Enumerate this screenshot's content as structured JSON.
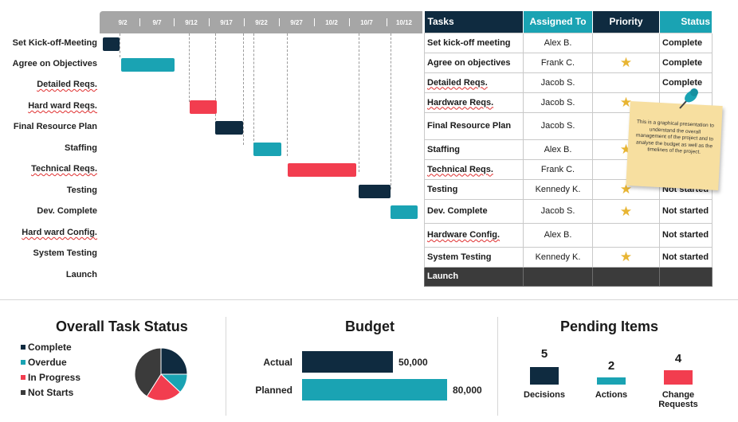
{
  "gantt": {
    "dates": [
      "9/2",
      "9/7",
      "9/12",
      "9/17",
      "9/22",
      "9/27",
      "10/2",
      "10/7",
      "10/12"
    ],
    "tasks": [
      {
        "label": "Set Kick-off-Meeting",
        "squiggle": false,
        "color": "#0f2b40"
      },
      {
        "label": "Agree on Objectives",
        "squiggle": false,
        "color": "#1aa3b3"
      },
      {
        "label": "Detailed Reqs.",
        "squiggle": true,
        "color": ""
      },
      {
        "label": "Hard ward Reqs.",
        "squiggle": true,
        "color": "#f23d4f"
      },
      {
        "label": "Final Resource Plan",
        "squiggle": false,
        "color": "#0f2b40"
      },
      {
        "label": "Staffing",
        "squiggle": false,
        "color": "#1aa3b3"
      },
      {
        "label": "Technical Reqs.",
        "squiggle": true,
        "color": "#f23d4f"
      },
      {
        "label": "Testing",
        "squiggle": false,
        "color": "#0f2b40"
      },
      {
        "label": "Dev. Complete",
        "squiggle": false,
        "color": "#1aa3b3"
      },
      {
        "label": "Hard ward Config.",
        "squiggle": true,
        "color": ""
      },
      {
        "label": "System Testing",
        "squiggle": false,
        "color": ""
      },
      {
        "label": "Launch",
        "squiggle": false,
        "color": ""
      }
    ]
  },
  "table": {
    "headers": {
      "tasks": "Tasks",
      "assigned": "Assigned To",
      "priority": "Priority",
      "status": "Status"
    },
    "header_colors": {
      "tasks": "#0f2b40",
      "assigned": "#1aa3b3",
      "priority": "#0f2b40",
      "status": "#1aa3b3"
    },
    "rows": [
      {
        "task": "Set kick-off meeting",
        "assigned": "Alex B.",
        "priority": false,
        "status": "Complete",
        "squiggle": false
      },
      {
        "task": "Agree on objectives",
        "assigned": "Frank C.",
        "priority": true,
        "status": "Complete",
        "squiggle": false
      },
      {
        "task": "Detailed Reqs.",
        "assigned": "Jacob S.",
        "priority": false,
        "status": "Complete",
        "squiggle": true
      },
      {
        "task": "Hardware Reqs.",
        "assigned": "Jacob S.",
        "priority": true,
        "status": "",
        "squiggle": true
      },
      {
        "task": "Final Resource Plan",
        "assigned": "Jacob S.",
        "priority": false,
        "status": "",
        "squiggle": false
      },
      {
        "task": "Staffing",
        "assigned": "Alex B.",
        "priority": true,
        "status": "",
        "squiggle": false
      },
      {
        "task": "Technical Reqs.",
        "assigned": "Frank C.",
        "priority": false,
        "status": "",
        "squiggle": true
      },
      {
        "task": "Testing",
        "assigned": "Kennedy K.",
        "priority": true,
        "status": "Not started",
        "squiggle": false
      },
      {
        "task": "Dev. Complete",
        "assigned": "Jacob S.",
        "priority": true,
        "status": "Not started",
        "squiggle": false
      },
      {
        "task": "Hardware Config.",
        "assigned": "Alex B.",
        "priority": false,
        "status": "Not started",
        "squiggle": true
      },
      {
        "task": "System Testing",
        "assigned": "Kennedy K.",
        "priority": true,
        "status": "Not started",
        "squiggle": false
      }
    ],
    "launch_label": "Launch",
    "star_icon": "star-icon",
    "star_color": "#e8b533"
  },
  "note": {
    "text": "This is a graphical presentation to understand the overall management of the project and to analyse the budget as well as the timelines of the project.",
    "pin_icon": "pushpin-icon",
    "pin_color": "#1aa3b3"
  },
  "task_status": {
    "title": "Overall Task Status",
    "legend": [
      {
        "label": "Complete",
        "color": "#0f2b40"
      },
      {
        "label": "Overdue",
        "color": "#1aa3b3"
      },
      {
        "label": "In Progress",
        "color": "#f23d4f"
      },
      {
        "label": "Not Starts",
        "color": "#3b3b3b"
      }
    ],
    "pie_colors": [
      "#0f2b40",
      "#1aa3b3",
      "#f23d4f",
      "#3b3b3b"
    ]
  },
  "budget": {
    "title": "Budget",
    "items": [
      {
        "label": "Actual",
        "value": "50,000",
        "amount": 50000,
        "color": "#0f2b40"
      },
      {
        "label": "Planned",
        "value": "80,000",
        "amount": 80000,
        "color": "#1aa3b3"
      }
    ]
  },
  "pending": {
    "title": "Pending Items",
    "items": [
      {
        "count": "5",
        "label": "Decisions",
        "color": "#0f2b40"
      },
      {
        "count": "2",
        "label": "Actions",
        "color": "#1aa3b3"
      },
      {
        "count": "4",
        "label": "Change Requests",
        "color": "#f23d4f"
      }
    ]
  }
}
